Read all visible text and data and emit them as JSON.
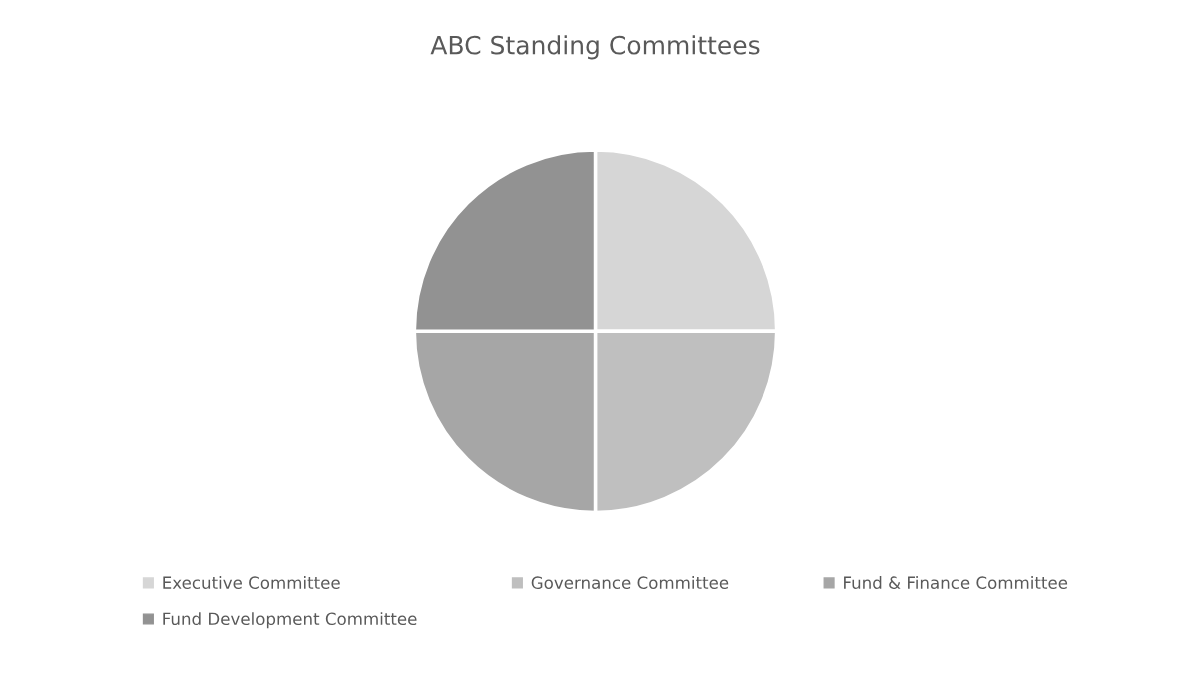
{
  "chart_data": {
    "type": "pie",
    "title": "ABC Standing Committees",
    "categories": [
      "Executive Committee",
      "Governance Committee",
      "Fund & Finance Committee",
      "Fund Development Committee"
    ],
    "values": [
      25,
      25,
      25,
      25
    ],
    "colors": [
      "#d6d6d6",
      "#bfbfbf",
      "#a6a6a6",
      "#929292"
    ],
    "legend": "bottom"
  }
}
